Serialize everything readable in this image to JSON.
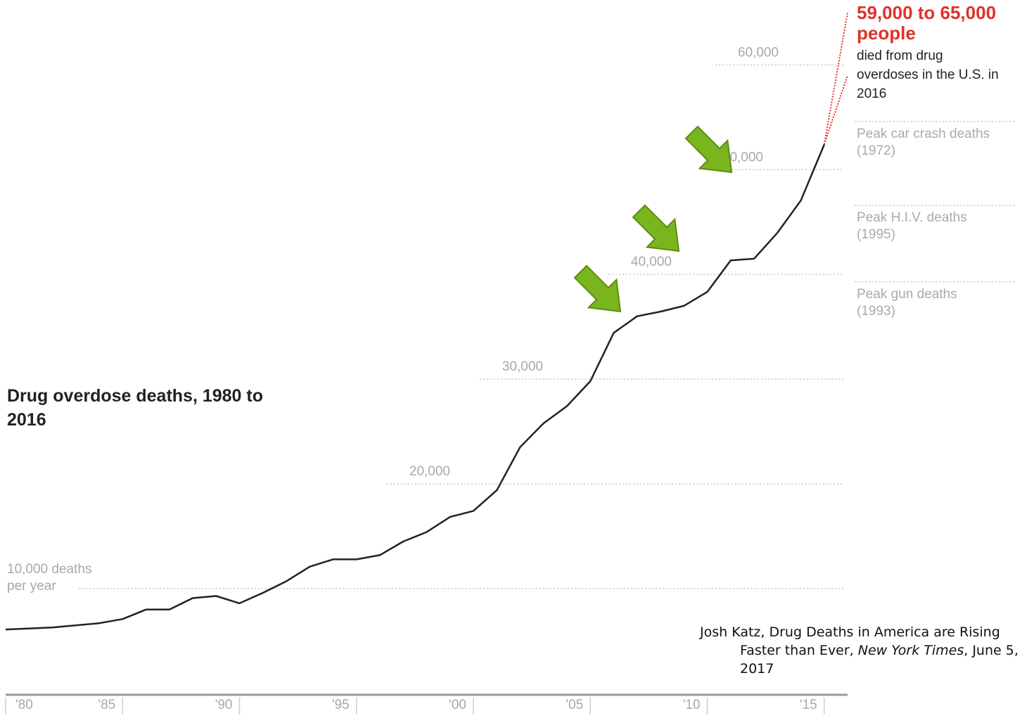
{
  "chart_data": {
    "type": "line",
    "title": "Drug overdose deaths, 1980 to 2016",
    "x": [
      1980,
      1981,
      1982,
      1983,
      1984,
      1985,
      1986,
      1987,
      1988,
      1989,
      1990,
      1991,
      1992,
      1993,
      1994,
      1995,
      1996,
      1997,
      1998,
      1999,
      2000,
      2001,
      2002,
      2003,
      2004,
      2005,
      2006,
      2007,
      2008,
      2009,
      2010,
      2011,
      2012,
      2013,
      2014,
      2015
    ],
    "values": [
      6100,
      6200,
      6300,
      6500,
      6700,
      7100,
      8000,
      8000,
      9100,
      9300,
      8600,
      9600,
      10700,
      12100,
      12800,
      12800,
      13200,
      14500,
      15400,
      16849,
      17415,
      19394,
      23518,
      25785,
      27424,
      29813,
      34425,
      36010,
      36450,
      37004,
      38329,
      41340,
      41502,
      43982,
      47055,
      52404
    ],
    "color": "#222222",
    "xlim": [
      1980,
      2016
    ],
    "xticks": [
      {
        "value": 1980,
        "label": "'80"
      },
      {
        "value": 1985,
        "label": "'85"
      },
      {
        "value": 1990,
        "label": "'90"
      },
      {
        "value": 1995,
        "label": "'95"
      },
      {
        "value": 2000,
        "label": "'00"
      },
      {
        "value": 2005,
        "label": "'05"
      },
      {
        "value": 2010,
        "label": "'10"
      },
      {
        "value": 2015,
        "label": "'15"
      }
    ],
    "ylim": [
      0,
      66000
    ],
    "yticks": [
      {
        "value": 10000,
        "label": "10,000 deaths"
      },
      {
        "value": 20000,
        "label": "20,000"
      },
      {
        "value": 30000,
        "label": "30,000"
      },
      {
        "value": 40000,
        "label": "40,000"
      },
      {
        "value": 50000,
        "label": "50,000"
      },
      {
        "value": 60000,
        "label": "60,000"
      }
    ],
    "y_unit_note": "per year",
    "grid": true,
    "estimate": {
      "x": 2016,
      "low": 59000,
      "high": 65000,
      "color": "#e0312b",
      "label_range": "59,000 to 65,000 people",
      "label_note": "died from drug overdoses in the U.S. in 2016"
    },
    "reference_lines": [
      {
        "label": "Peak car crash deaths (1972)",
        "value": 54600
      },
      {
        "label": "Peak H.I.V. deaths (1995)",
        "value": 46600
      },
      {
        "label": "Peak gun deaths (1993)",
        "value": 39300
      }
    ],
    "citation": {
      "text": "Josh Katz, Drug Deaths in America are Rising Faster than Ever,",
      "publication": "New York Times",
      "date": ", June 5, 2017"
    }
  }
}
